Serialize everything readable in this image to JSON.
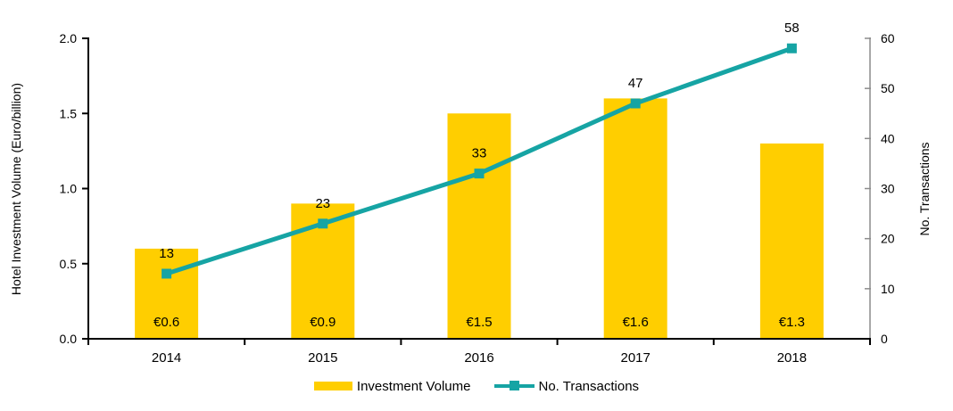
{
  "chart_data": {
    "type": "combo",
    "categories": [
      "2014",
      "2015",
      "2016",
      "2017",
      "2018"
    ],
    "series": [
      {
        "name": "Investment Volume",
        "type": "bar",
        "axis": "left",
        "values": [
          0.6,
          0.9,
          1.5,
          1.6,
          1.3
        ],
        "labels": [
          "€0.6",
          "€0.9",
          "€1.5",
          "€1.6",
          "€1.3"
        ],
        "color": "#FFCE00"
      },
      {
        "name": "No. Transactions",
        "type": "line",
        "axis": "right",
        "values": [
          13,
          23,
          33,
          47,
          58
        ],
        "labels": [
          "13",
          "23",
          "33",
          "47",
          "58"
        ],
        "color": "#16A4A4"
      }
    ],
    "left_axis": {
      "title": "Hotel Investment Volume (Euro/billion)",
      "min": 0.0,
      "max": 2.0,
      "step": 0.5,
      "tick_labels": [
        "0.0",
        "0.5",
        "1.0",
        "1.5",
        "2.0"
      ],
      "color": "#000000"
    },
    "right_axis": {
      "title": "No. Transactions",
      "min": 0,
      "max": 60,
      "step": 10,
      "tick_labels": [
        "0",
        "10",
        "20",
        "30",
        "40",
        "50",
        "60"
      ],
      "color": "#8C8C8C"
    },
    "x_axis": {
      "color": "#000000"
    },
    "legend": {
      "position": "bottom",
      "entries": [
        {
          "label": "Investment Volume",
          "swatch": "bar",
          "color": "#FFCE00"
        },
        {
          "label": "No. Transactions",
          "swatch": "line-marker",
          "color": "#16A4A4"
        }
      ]
    },
    "grid": false,
    "label_color": "#000000"
  }
}
